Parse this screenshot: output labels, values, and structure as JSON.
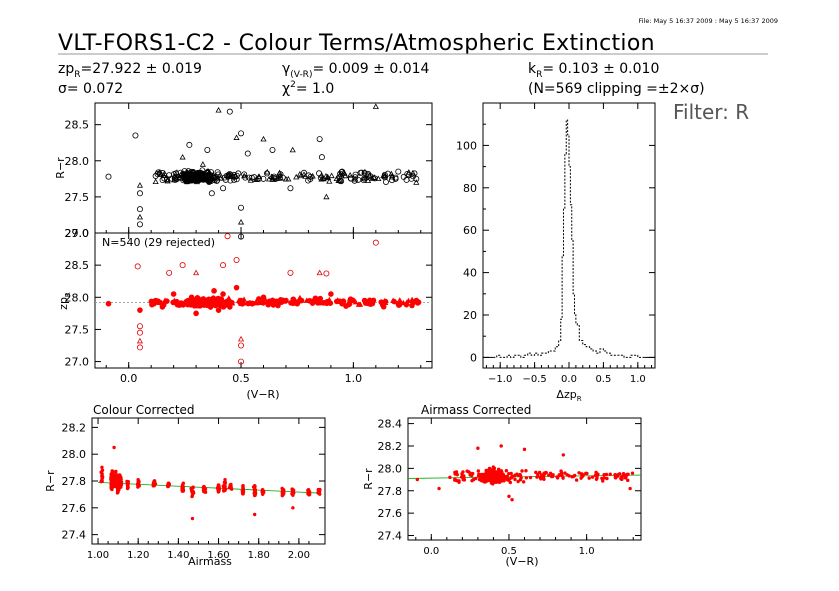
{
  "header": {
    "file_stamp": "File: May  5 16:37 2009 : May  5 16:37 2009",
    "title": "VLT-FORS1-C2 - Colour Terms/Atmospheric Extinction",
    "zp": {
      "base": "zp",
      "sub": "R",
      "value": "=27.922 ± 0.019"
    },
    "sigma": "σ=  0.072",
    "gamma": {
      "base": "γ",
      "sub": "(V-R)",
      "value": "=  0.009 ± 0.014"
    },
    "chi2": {
      "base": "χ",
      "sup": "2",
      "value": "=   1.0"
    },
    "k": {
      "base": "k",
      "sub": "R",
      "value": "= 0.103 ± 0.010"
    },
    "clip": "(N=569 clipping =±2×σ)",
    "filter": "Filter: R"
  },
  "colors": {
    "axis": "#000000",
    "rejected": "#e00000",
    "accepted": "#ff0000",
    "fit": "#00aa00",
    "grey": "#999999"
  },
  "chart_data": [
    {
      "type": "scatter",
      "panel": "top-left",
      "ylabel": "R−r",
      "xlim": [
        -0.15,
        1.35
      ],
      "ylim": [
        27.0,
        28.8
      ],
      "yticks": [
        "27.0",
        "27.5",
        "28.0",
        "28.5"
      ],
      "markers": "open circles and triangles",
      "points": [
        [
          -0.09,
          27.78
        ],
        [
          0.03,
          28.35
        ],
        [
          0.05,
          27.66
        ],
        [
          0.05,
          27.55
        ],
        [
          0.05,
          27.33
        ],
        [
          0.05,
          27.22
        ],
        [
          0.05,
          27.12
        ],
        [
          0.12,
          27.79
        ],
        [
          0.12,
          27.71
        ],
        [
          0.15,
          27.83
        ],
        [
          0.18,
          27.8
        ],
        [
          0.24,
          28.05
        ],
        [
          0.27,
          28.22
        ],
        [
          0.3,
          27.74
        ],
        [
          0.33,
          27.95
        ],
        [
          0.35,
          28.15
        ],
        [
          0.37,
          27.55
        ],
        [
          0.4,
          28.7
        ],
        [
          0.42,
          27.62
        ],
        [
          0.45,
          28.68
        ],
        [
          0.48,
          28.32
        ],
        [
          0.5,
          28.38
        ],
        [
          0.5,
          27.35
        ],
        [
          0.5,
          27.15
        ],
        [
          0.5,
          26.95
        ],
        [
          0.53,
          28.1
        ],
        [
          0.6,
          28.3
        ],
        [
          0.64,
          28.15
        ],
        [
          0.72,
          27.62
        ],
        [
          0.73,
          28.15
        ],
        [
          0.85,
          28.3
        ],
        [
          0.86,
          28.05
        ],
        [
          0.88,
          27.5
        ],
        [
          0.95,
          27.85
        ],
        [
          1.05,
          27.83
        ],
        [
          1.1,
          28.75
        ],
        [
          1.2,
          27.85
        ],
        [
          1.28,
          27.75
        ],
        [
          1.28,
          27.7
        ]
      ],
      "dense_band": {
        "x_range": [
          0.1,
          1.3
        ],
        "y_center": 27.78,
        "y_spread": 0.1
      }
    },
    {
      "type": "scatter",
      "panel": "middle-left",
      "annotation": "N=540 (29 rejected)",
      "ylabel_base": "zp",
      "ylabel_sub": "R",
      "xlabel": "(V−R)",
      "xlim": [
        -0.15,
        1.35
      ],
      "xticks": [
        "0.0",
        "0.5",
        "1.0"
      ],
      "ylim": [
        26.9,
        29.0
      ],
      "yticks": [
        "27.0",
        "27.5",
        "28.0",
        "28.5",
        "29.0"
      ],
      "fit_y": 27.92,
      "rejected": [
        [
          0.04,
          28.48
        ],
        [
          0.05,
          27.55
        ],
        [
          0.05,
          27.45
        ],
        [
          0.05,
          27.32
        ],
        [
          0.05,
          27.22
        ],
        [
          0.18,
          28.38
        ],
        [
          0.24,
          28.5
        ],
        [
          0.3,
          28.38
        ],
        [
          0.42,
          28.5
        ],
        [
          0.44,
          28.95
        ],
        [
          0.48,
          28.58
        ],
        [
          0.5,
          27.35
        ],
        [
          0.5,
          27.25
        ],
        [
          0.5,
          27.0
        ],
        [
          0.72,
          28.38
        ],
        [
          0.85,
          28.38
        ],
        [
          0.88,
          28.37
        ],
        [
          1.1,
          28.85
        ]
      ],
      "accepted": [
        [
          -0.09,
          27.9
        ],
        [
          0.05,
          27.8
        ],
        [
          0.12,
          27.95
        ],
        [
          0.15,
          27.85
        ],
        [
          0.2,
          28.05
        ],
        [
          0.25,
          27.9
        ],
        [
          0.28,
          28.0
        ],
        [
          0.3,
          27.75
        ],
        [
          0.35,
          27.95
        ],
        [
          0.38,
          28.1
        ],
        [
          0.4,
          27.8
        ],
        [
          0.42,
          28.05
        ],
        [
          0.45,
          27.85
        ],
        [
          0.48,
          28.15
        ],
        [
          0.5,
          27.95
        ],
        [
          0.55,
          27.9
        ],
        [
          0.6,
          28.0
        ],
        [
          0.7,
          27.95
        ],
        [
          0.75,
          27.9
        ],
        [
          0.85,
          27.95
        ],
        [
          0.9,
          28.05
        ],
        [
          0.95,
          27.9
        ],
        [
          1.05,
          27.95
        ],
        [
          1.2,
          27.9
        ],
        [
          1.28,
          27.95
        ]
      ],
      "dense_band": {
        "x_range": [
          0.1,
          1.3
        ],
        "y_center": 27.92,
        "y_spread": 0.08
      }
    },
    {
      "type": "bar",
      "panel": "histogram",
      "style": "dashed step",
      "xlabel_base": "Δzp",
      "xlabel_sub": "R",
      "xlim": [
        -1.25,
        1.25
      ],
      "xticks": [
        "−1.0",
        "−0.5",
        "0.0",
        "0.5",
        "1.0"
      ],
      "ylim": [
        -5,
        120
      ],
      "yticks": [
        "0",
        "20",
        "40",
        "60",
        "80",
        "100"
      ],
      "bins": [
        [
          -1.1,
          0
        ],
        [
          -1.05,
          1
        ],
        [
          -1.0,
          0
        ],
        [
          -0.95,
          0
        ],
        [
          -0.9,
          1
        ],
        [
          -0.85,
          0
        ],
        [
          -0.8,
          1
        ],
        [
          -0.75,
          1
        ],
        [
          -0.7,
          0
        ],
        [
          -0.65,
          1
        ],
        [
          -0.6,
          2
        ],
        [
          -0.55,
          1
        ],
        [
          -0.5,
          2
        ],
        [
          -0.45,
          1
        ],
        [
          -0.4,
          2
        ],
        [
          -0.35,
          2
        ],
        [
          -0.3,
          3
        ],
        [
          -0.25,
          3
        ],
        [
          -0.2,
          5
        ],
        [
          -0.15,
          8
        ],
        [
          -0.12,
          18
        ],
        [
          -0.1,
          48
        ],
        [
          -0.08,
          70
        ],
        [
          -0.06,
          96
        ],
        [
          -0.04,
          112
        ],
        [
          -0.02,
          105
        ],
        [
          0.0,
          90
        ],
        [
          0.02,
          72
        ],
        [
          0.04,
          55
        ],
        [
          0.06,
          30
        ],
        [
          0.08,
          20
        ],
        [
          0.1,
          16
        ],
        [
          0.12,
          15
        ],
        [
          0.15,
          8
        ],
        [
          0.2,
          6
        ],
        [
          0.25,
          5
        ],
        [
          0.3,
          4
        ],
        [
          0.35,
          3
        ],
        [
          0.4,
          2
        ],
        [
          0.45,
          4
        ],
        [
          0.5,
          3
        ],
        [
          0.55,
          2
        ],
        [
          0.6,
          1
        ],
        [
          0.7,
          1
        ],
        [
          0.8,
          0
        ],
        [
          0.9,
          1
        ],
        [
          1.0,
          0
        ],
        [
          1.1,
          0
        ]
      ]
    },
    {
      "type": "scatter",
      "panel": "bottom-left",
      "title": "Colour Corrected",
      "ylabel": "R−r",
      "xlabel": "Airmass",
      "xlim": [
        0.97,
        2.13
      ],
      "xticks": [
        "1.00",
        "1.20",
        "1.40",
        "1.60",
        "1.80",
        "2.00"
      ],
      "ylim": [
        27.33,
        28.27
      ],
      "yticks": [
        "27.4",
        "27.6",
        "27.8",
        "28.0",
        "28.2"
      ],
      "fit_line": [
        [
          1.0,
          27.79
        ],
        [
          2.1,
          27.71
        ]
      ],
      "groups": [
        [
          1.02,
          27.85,
          0.12
        ],
        [
          1.07,
          27.8,
          0.16
        ],
        [
          1.09,
          27.8,
          0.14
        ],
        [
          1.1,
          27.78,
          0.14
        ],
        [
          1.11,
          27.79,
          0.12
        ],
        [
          1.15,
          27.77,
          0.06
        ],
        [
          1.2,
          27.78,
          0.06
        ],
        [
          1.28,
          27.78,
          0.06
        ],
        [
          1.35,
          27.77,
          0.05
        ],
        [
          1.42,
          27.75,
          0.08
        ],
        [
          1.47,
          27.73,
          0.1
        ],
        [
          1.53,
          27.74,
          0.08
        ],
        [
          1.6,
          27.75,
          0.08
        ],
        [
          1.63,
          27.76,
          0.1
        ],
        [
          1.66,
          27.76,
          0.06
        ],
        [
          1.72,
          27.74,
          0.08
        ],
        [
          1.78,
          27.73,
          0.1
        ],
        [
          1.82,
          27.72,
          0.05
        ],
        [
          1.92,
          27.72,
          0.06
        ],
        [
          1.97,
          27.72,
          0.06
        ],
        [
          2.05,
          27.71,
          0.06
        ],
        [
          2.1,
          27.72,
          0.05
        ]
      ],
      "extra": [
        [
          1.08,
          28.05
        ],
        [
          1.47,
          27.52
        ],
        [
          1.78,
          27.55
        ],
        [
          1.97,
          27.6
        ]
      ]
    },
    {
      "type": "scatter",
      "panel": "bottom-right",
      "title": "Airmass Corrected",
      "ylabel": "R−r",
      "xlabel": "(V−R)",
      "xlim": [
        -0.15,
        1.35
      ],
      "xticks": [
        "0.0",
        "0.5",
        "1.0"
      ],
      "ylim": [
        27.36,
        28.45
      ],
      "yticks": [
        "27.4",
        "27.6",
        "27.8",
        "28.0",
        "28.2",
        "28.4"
      ],
      "fit_line": [
        [
          -0.15,
          27.91
        ],
        [
          1.35,
          27.94
        ]
      ],
      "dense_band": {
        "x_range": [
          0.15,
          1.3
        ],
        "y_center": 27.93,
        "y_spread": 0.07
      },
      "extra": [
        [
          -0.09,
          27.9
        ],
        [
          0.05,
          27.82
        ],
        [
          0.12,
          27.92
        ],
        [
          0.3,
          28.18
        ],
        [
          0.45,
          28.2
        ],
        [
          0.6,
          28.17
        ],
        [
          0.85,
          28.12
        ],
        [
          0.5,
          27.75
        ],
        [
          0.52,
          27.72
        ],
        [
          1.28,
          27.82
        ]
      ]
    }
  ]
}
